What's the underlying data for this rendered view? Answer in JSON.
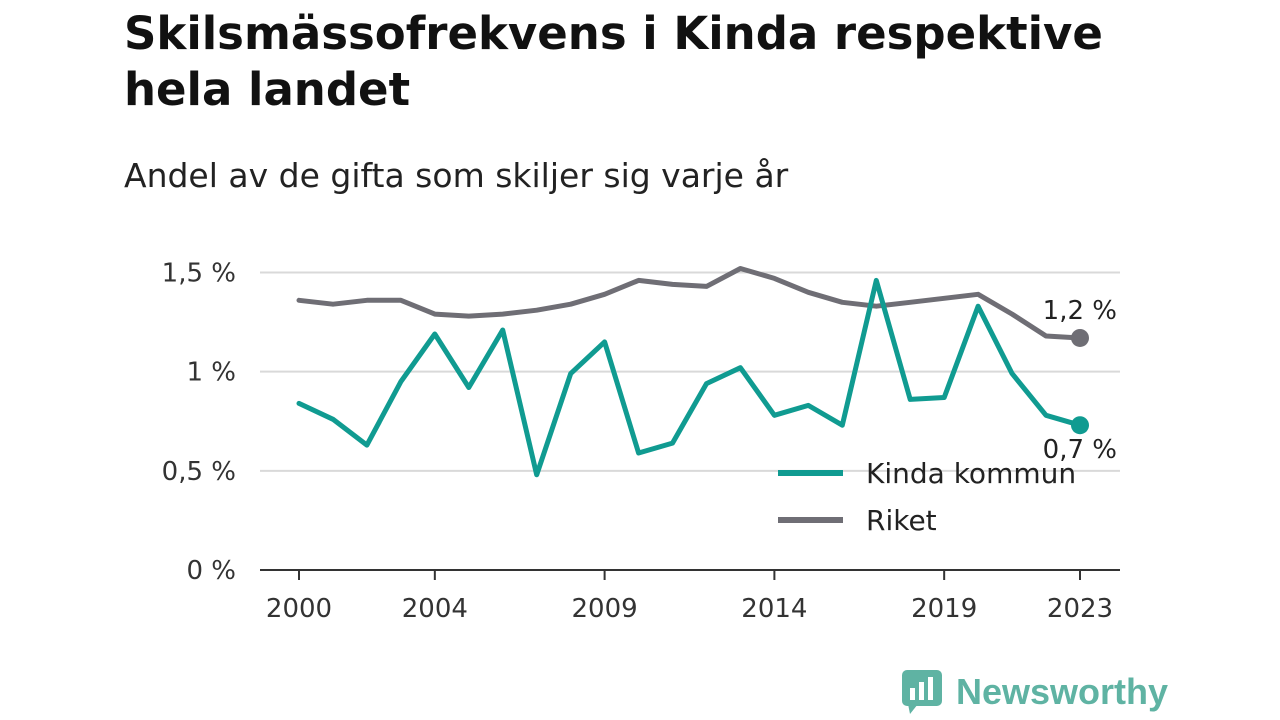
{
  "header": {
    "title": "Skilsmässofrekvens i Kinda respektive hela landet",
    "subtitle": "Andel av de gifta som skiljer sig varje år"
  },
  "brand": {
    "name": "Newsworthy",
    "icon": "newsworthy-logo-icon",
    "color": "#5fb3a3"
  },
  "chart_data": {
    "type": "line",
    "x": [
      2000,
      2001,
      2002,
      2003,
      2004,
      2005,
      2006,
      2007,
      2008,
      2009,
      2010,
      2011,
      2012,
      2013,
      2014,
      2015,
      2016,
      2017,
      2018,
      2019,
      2020,
      2021,
      2022,
      2023
    ],
    "series": [
      {
        "name": "Kinda kommun",
        "color": "#109b91",
        "values": [
          0.84,
          0.76,
          0.63,
          0.95,
          1.19,
          0.92,
          1.21,
          0.48,
          0.99,
          1.15,
          0.59,
          0.64,
          0.94,
          1.02,
          0.78,
          0.83,
          0.73,
          1.46,
          0.86,
          0.87,
          1.33,
          0.99,
          0.78,
          0.73
        ],
        "end_label": "0,7 %"
      },
      {
        "name": "Riket",
        "color": "#6f6e75",
        "values": [
          1.36,
          1.34,
          1.36,
          1.36,
          1.29,
          1.28,
          1.29,
          1.31,
          1.34,
          1.39,
          1.46,
          1.44,
          1.43,
          1.52,
          1.47,
          1.4,
          1.35,
          1.33,
          1.35,
          1.37,
          1.39,
          1.29,
          1.18,
          1.17
        ],
        "end_label": "1,2 %"
      }
    ],
    "y_ticks": [
      {
        "value": 0,
        "label": "0 %"
      },
      {
        "value": 0.5,
        "label": "0,5 %"
      },
      {
        "value": 1,
        "label": "1 %"
      },
      {
        "value": 1.5,
        "label": "1,5 %"
      }
    ],
    "x_ticks": [
      {
        "value": 2000,
        "label": "2000"
      },
      {
        "value": 2004,
        "label": "2004"
      },
      {
        "value": 2009,
        "label": "2009"
      },
      {
        "value": 2014,
        "label": "2014"
      },
      {
        "value": 2019,
        "label": "2019"
      },
      {
        "value": 2023,
        "label": "2023"
      }
    ],
    "xlim": [
      2000,
      2023
    ],
    "ylim": [
      0,
      1.6
    ],
    "grid": true,
    "legend_position": "bottom-right"
  }
}
